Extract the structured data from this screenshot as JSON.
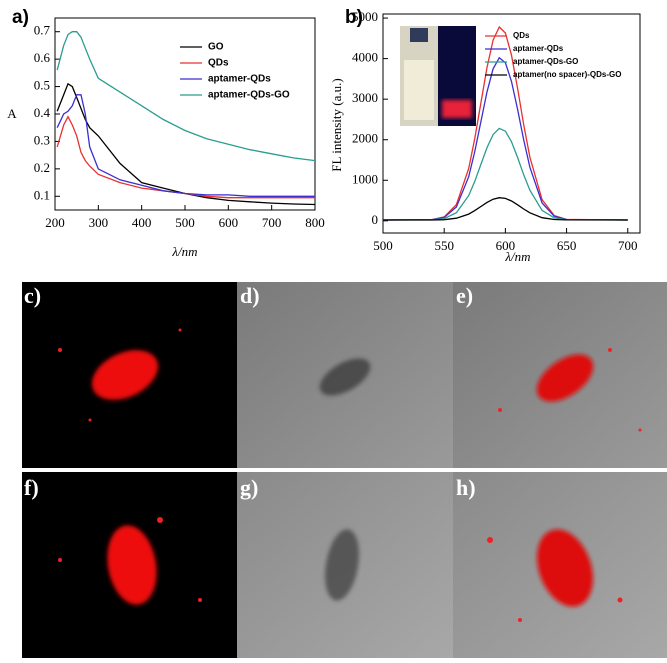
{
  "chart_data": [
    {
      "type": "line",
      "panel_label": "a)",
      "xlabel": "λ/nm",
      "ylabel": "A",
      "x": [
        205,
        220,
        230,
        240,
        250,
        260,
        270,
        280,
        300,
        350,
        400,
        450,
        500,
        550,
        600,
        650,
        700,
        750,
        800
      ],
      "series": [
        {
          "name": "GO",
          "color": "#000000",
          "values": [
            0.41,
            0.47,
            0.51,
            0.5,
            0.46,
            0.42,
            0.38,
            0.35,
            0.32,
            0.22,
            0.15,
            0.13,
            0.11,
            0.095,
            0.085,
            0.08,
            0.075,
            0.072,
            0.07
          ]
        },
        {
          "name": "QDs",
          "color": "#e8312f",
          "values": [
            0.28,
            0.36,
            0.39,
            0.36,
            0.32,
            0.26,
            0.23,
            0.21,
            0.18,
            0.15,
            0.13,
            0.12,
            0.11,
            0.1,
            0.095,
            0.095,
            0.095,
            0.095,
            0.095
          ]
        },
        {
          "name": "aptamer-QDs",
          "color": "#3b2fd2",
          "values": [
            0.35,
            0.4,
            0.41,
            0.43,
            0.47,
            0.47,
            0.4,
            0.28,
            0.2,
            0.16,
            0.14,
            0.12,
            0.11,
            0.105,
            0.105,
            0.1,
            0.1,
            0.1,
            0.1
          ]
        },
        {
          "name": "aptamer-QDs-GO",
          "color": "#2a9d8f",
          "values": [
            0.56,
            0.65,
            0.69,
            0.7,
            0.7,
            0.68,
            0.64,
            0.6,
            0.53,
            0.48,
            0.43,
            0.38,
            0.34,
            0.31,
            0.29,
            0.27,
            0.255,
            0.24,
            0.23
          ]
        }
      ],
      "xlim": [
        200,
        800
      ],
      "xticks": [
        200,
        300,
        400,
        500,
        600,
        700,
        800
      ],
      "ylim": [
        0.05,
        0.75
      ],
      "yticks": [
        0.1,
        0.2,
        0.3,
        0.4,
        0.5,
        0.6,
        0.7
      ],
      "legend": "upper right"
    },
    {
      "type": "line",
      "panel_label": "b)",
      "xlabel": "λ/nm",
      "ylabel": "FL intensity (a.u.)",
      "x": [
        500,
        540,
        550,
        560,
        570,
        575,
        580,
        585,
        590,
        595,
        600,
        605,
        610,
        615,
        620,
        630,
        640,
        650,
        700
      ],
      "series": [
        {
          "name": "QDs",
          "color": "#e8312f",
          "values": [
            20,
            30,
            96,
            401,
            1291,
            2033,
            2909,
            3780,
            4456,
            4780,
            4632,
            4085,
            3266,
            2371,
            1567,
            520,
            129,
            36,
            20
          ]
        },
        {
          "name": "aptamer-QDs",
          "color": "#3b2fd2",
          "values": [
            20,
            29,
            84,
            340,
            1088,
            1712,
            2448,
            3180,
            3748,
            4020,
            3896,
            3436,
            2748,
            1996,
            1320,
            440,
            112,
            34,
            20
          ]
        },
        {
          "name": "aptamer-QDs-GO",
          "color": "#2a9d8f",
          "values": [
            20,
            25,
            56,
            201,
            623,
            976,
            1392,
            1805,
            2126,
            2280,
            2210,
            1950,
            1561,
            1136,
            755,
            257,
            72,
            28,
            20
          ]
        },
        {
          "name": "aptamer(no spacer)-QDs-GO",
          "color": "#000000",
          "values": [
            20,
            21,
            29,
            64,
            167,
            253,
            354,
            455,
            533,
            570,
            553,
            490,
            395,
            292,
            199,
            78,
            33,
            22,
            20
          ]
        }
      ],
      "xlim": [
        500,
        710
      ],
      "xticks": [
        500,
        550,
        600,
        650,
        700
      ],
      "ylim": [
        -300,
        5100
      ],
      "yticks": [
        0,
        1000,
        2000,
        3000,
        4000,
        5000
      ],
      "legend": "upper right"
    }
  ],
  "panels": {
    "labels": [
      "c)",
      "d)",
      "e)",
      "f)",
      "g)",
      "h)"
    ]
  }
}
